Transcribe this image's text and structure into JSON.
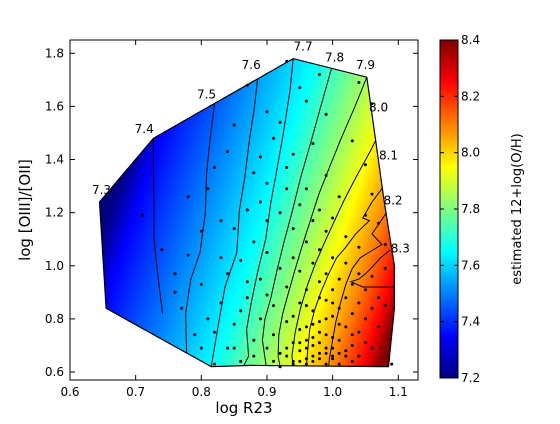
{
  "chart_data": {
    "type": "contour",
    "title": "",
    "xlabel": "log R23",
    "ylabel": "log [OIII]/[OII]",
    "xlim": [
      0.6,
      1.13
    ],
    "ylim": [
      0.57,
      1.85
    ],
    "xticks": [
      "0.6",
      "0.7",
      "0.8",
      "0.9",
      "1.0",
      "1.1"
    ],
    "yticks": [
      "0.6",
      "0.8",
      "1.0",
      "1.2",
      "1.4",
      "1.6",
      "1.8"
    ],
    "hull": [
      [
        0.645,
        1.24
      ],
      [
        0.727,
        1.48
      ],
      [
        0.94,
        1.78
      ],
      [
        1.052,
        1.71
      ],
      [
        1.078,
        1.25
      ],
      [
        1.094,
        1.0
      ],
      [
        1.094,
        0.84
      ],
      [
        1.085,
        0.62
      ],
      [
        0.876,
        0.625
      ],
      [
        0.815,
        0.62
      ],
      [
        0.655,
        0.84
      ]
    ],
    "contours": [
      {
        "level": "7.3",
        "points": [
          [
            0.645,
            1.24
          ],
          [
            0.655,
            0.84
          ]
        ]
      },
      {
        "level": "7.4",
        "points": [
          [
            0.727,
            1.48
          ],
          [
            0.727,
            1.35
          ],
          [
            0.728,
            1.25
          ],
          [
            0.728,
            1.1
          ],
          [
            0.733,
            0.98
          ],
          [
            0.741,
            0.82
          ]
        ]
      },
      {
        "level": "7.5",
        "points": [
          [
            0.82,
            1.61
          ],
          [
            0.813,
            1.47
          ],
          [
            0.808,
            1.35
          ],
          [
            0.806,
            1.2
          ],
          [
            0.798,
            1.05
          ],
          [
            0.784,
            0.95
          ],
          [
            0.776,
            0.82
          ],
          [
            0.778,
            0.63
          ]
        ]
      },
      {
        "level": "7.6",
        "points": [
          [
            0.886,
            1.71
          ],
          [
            0.881,
            1.6
          ],
          [
            0.873,
            1.47
          ],
          [
            0.866,
            1.33
          ],
          [
            0.858,
            1.21
          ],
          [
            0.854,
            1.05
          ],
          [
            0.836,
            0.92
          ],
          [
            0.826,
            0.78
          ],
          [
            0.815,
            0.62
          ]
        ]
      },
      {
        "level": "7.7",
        "points": [
          [
            0.94,
            1.78
          ],
          [
            0.935,
            1.66
          ],
          [
            0.925,
            1.5
          ],
          [
            0.915,
            1.36
          ],
          [
            0.906,
            1.24
          ],
          [
            0.898,
            1.1
          ],
          [
            0.886,
            0.98
          ],
          [
            0.876,
            0.86
          ],
          [
            0.869,
            0.76
          ],
          [
            0.872,
            0.66
          ],
          [
            0.864,
            0.62
          ]
        ]
      },
      {
        "level": "7.8",
        "points": [
          [
            0.999,
            1.75
          ],
          [
            0.982,
            1.6
          ],
          [
            0.965,
            1.45
          ],
          [
            0.951,
            1.33
          ],
          [
            0.938,
            1.2
          ],
          [
            0.927,
            1.1
          ],
          [
            0.915,
            0.98
          ],
          [
            0.906,
            0.88
          ],
          [
            0.897,
            0.8
          ],
          [
            0.893,
            0.72
          ],
          [
            0.899,
            0.62
          ]
        ]
      },
      {
        "level": "7.9",
        "points": [
          [
            1.052,
            1.71
          ],
          [
            1.034,
            1.6
          ],
          [
            1.013,
            1.48
          ],
          [
            0.995,
            1.37
          ],
          [
            0.979,
            1.27
          ],
          [
            0.966,
            1.17
          ],
          [
            0.953,
            1.07
          ],
          [
            0.942,
            0.98
          ],
          [
            0.933,
            0.9
          ],
          [
            0.924,
            0.82
          ],
          [
            0.918,
            0.74
          ],
          [
            0.917,
            0.66
          ],
          [
            0.92,
            0.62
          ]
        ]
      },
      {
        "level": "8.0",
        "points": [
          [
            1.075,
            1.52
          ],
          [
            1.057,
            1.43
          ],
          [
            1.037,
            1.34
          ],
          [
            1.018,
            1.25
          ],
          [
            1.003,
            1.17
          ],
          [
            0.988,
            1.09
          ],
          [
            0.974,
            1.01
          ],
          [
            0.962,
            0.93
          ],
          [
            0.951,
            0.84
          ],
          [
            0.943,
            0.75
          ],
          [
            0.938,
            0.66
          ],
          [
            0.94,
            0.62
          ]
        ]
      },
      {
        "level": "8.1",
        "points": [
          [
            1.078,
            1.3
          ],
          [
            1.06,
            1.24
          ],
          [
            1.046,
            1.18
          ],
          [
            1.056,
            1.17
          ],
          [
            1.035,
            1.12
          ],
          [
            1.02,
            1.07
          ],
          [
            1.006,
            1.03
          ],
          [
            0.994,
            0.97
          ],
          [
            0.982,
            0.9
          ],
          [
            0.972,
            0.83
          ],
          [
            0.965,
            0.76
          ],
          [
            0.962,
            0.68
          ],
          [
            0.96,
            0.62
          ]
        ]
      },
      {
        "level": "8.2",
        "points": [
          [
            1.082,
            1.2
          ],
          [
            1.06,
            1.12
          ],
          [
            1.075,
            1.08
          ],
          [
            1.055,
            1.05
          ],
          [
            1.042,
            1.03
          ],
          [
            1.03,
            0.99
          ],
          [
            1.02,
            0.93
          ],
          [
            1.012,
            0.86
          ],
          [
            1.005,
            0.79
          ],
          [
            1.0,
            0.72
          ],
          [
            0.995,
            0.65
          ],
          [
            0.994,
            0.62
          ]
        ]
      },
      {
        "level": "8.3",
        "points": [
          [
            1.088,
            1.06
          ],
          [
            1.073,
            1.03
          ],
          [
            1.062,
            1.0
          ],
          [
            1.05,
            0.97
          ],
          [
            1.04,
            0.95
          ],
          [
            1.028,
            0.94
          ],
          [
            1.046,
            0.92
          ],
          [
            1.06,
            0.92
          ],
          [
            1.094,
            0.92
          ]
        ]
      }
    ],
    "contour_labels": [
      {
        "text": "7.3",
        "x": 0.648,
        "y": 1.27
      },
      {
        "text": "7.4",
        "x": 0.713,
        "y": 1.5
      },
      {
        "text": "7.5",
        "x": 0.808,
        "y": 1.63
      },
      {
        "text": "7.6",
        "x": 0.876,
        "y": 1.74
      },
      {
        "text": "7.7",
        "x": 0.955,
        "y": 1.81
      },
      {
        "text": "7.8",
        "x": 1.003,
        "y": 1.77
      },
      {
        "text": "7.9",
        "x": 1.05,
        "y": 1.74
      },
      {
        "text": "8.0",
        "x": 1.07,
        "y": 1.58
      },
      {
        "text": "8.1",
        "x": 1.085,
        "y": 1.4
      },
      {
        "text": "8.2",
        "x": 1.092,
        "y": 1.23
      },
      {
        "text": "8.3",
        "x": 1.103,
        "y": 1.05
      }
    ],
    "colorbar": {
      "label": "estimated 12+log(O/H)",
      "min": 7.2,
      "max": 8.4,
      "ticks": [
        "7.2",
        "7.4",
        "7.6",
        "7.8",
        "8.0",
        "8.2",
        "8.4"
      ],
      "colors": [
        "#000080",
        "#0000ff",
        "#0080ff",
        "#00ffff",
        "#80ff80",
        "#ffff00",
        "#ff8000",
        "#ff0000",
        "#800000"
      ]
    },
    "scatter_points": [
      [
        0.78,
        1.26
      ],
      [
        0.8,
        1.13
      ],
      [
        0.81,
        1.29
      ],
      [
        0.8,
        0.93
      ],
      [
        0.78,
        1.04
      ],
      [
        0.77,
        0.84
      ],
      [
        0.79,
        0.74
      ],
      [
        0.8,
        0.69
      ],
      [
        0.82,
        1.37
      ],
      [
        0.83,
        1.17
      ],
      [
        0.84,
        0.97
      ],
      [
        0.83,
        0.86
      ],
      [
        0.85,
        0.78
      ],
      [
        0.84,
        0.69
      ],
      [
        0.86,
        0.64
      ],
      [
        0.88,
        0.72
      ],
      [
        0.87,
        1.21
      ],
      [
        0.87,
        0.88
      ],
      [
        0.86,
        1.02
      ],
      [
        0.88,
        1.09
      ],
      [
        0.89,
        0.95
      ],
      [
        0.89,
        0.8
      ],
      [
        0.9,
        1.31
      ],
      [
        0.9,
        1.17
      ],
      [
        0.91,
        1.48
      ],
      [
        0.9,
        1.05
      ],
      [
        0.91,
        0.85
      ],
      [
        0.91,
        0.74
      ],
      [
        0.92,
        1.2
      ],
      [
        0.92,
        0.99
      ],
      [
        0.92,
        0.67
      ],
      [
        0.93,
        1.29
      ],
      [
        0.93,
        0.92
      ],
      [
        0.93,
        0.79
      ],
      [
        0.94,
        1.14
      ],
      [
        0.94,
        1.03
      ],
      [
        0.94,
        0.71
      ],
      [
        0.94,
        0.63
      ],
      [
        0.95,
        1.23
      ],
      [
        0.95,
        0.98
      ],
      [
        0.95,
        0.86
      ],
      [
        0.95,
        0.68
      ],
      [
        0.96,
        1.09
      ],
      [
        0.96,
        0.91
      ],
      [
        0.96,
        0.77
      ],
      [
        0.96,
        0.65
      ],
      [
        0.97,
        1.17
      ],
      [
        0.97,
        1.01
      ],
      [
        0.97,
        0.83
      ],
      [
        0.97,
        0.7
      ],
      [
        0.97,
        0.64
      ],
      [
        0.98,
        1.06
      ],
      [
        0.98,
        0.94
      ],
      [
        0.98,
        0.79
      ],
      [
        0.98,
        0.67
      ],
      [
        0.99,
        1.13
      ],
      [
        0.99,
        0.97
      ],
      [
        0.99,
        0.87
      ],
      [
        0.99,
        0.74
      ],
      [
        0.99,
        0.63
      ],
      [
        1.0,
        1.03
      ],
      [
        1.0,
        0.91
      ],
      [
        1.0,
        0.81
      ],
      [
        1.0,
        0.69
      ],
      [
        1.0,
        0.65
      ],
      [
        1.01,
        0.95
      ],
      [
        1.01,
        0.84
      ],
      [
        1.01,
        0.72
      ],
      [
        1.01,
        0.63
      ],
      [
        1.02,
        1.01
      ],
      [
        1.02,
        0.88
      ],
      [
        1.02,
        0.77
      ],
      [
        1.02,
        0.68
      ],
      [
        1.03,
        0.93
      ],
      [
        1.03,
        0.82
      ],
      [
        1.03,
        0.7
      ],
      [
        1.03,
        0.64
      ],
      [
        1.04,
        0.97
      ],
      [
        1.04,
        0.86
      ],
      [
        1.04,
        0.75
      ],
      [
        1.04,
        0.66
      ],
      [
        1.05,
        0.91
      ],
      [
        1.05,
        0.8
      ],
      [
        1.05,
        0.71
      ],
      [
        1.06,
        0.96
      ],
      [
        1.06,
        0.84
      ],
      [
        1.06,
        0.69
      ],
      [
        1.07,
        0.88
      ],
      [
        1.07,
        0.77
      ],
      [
        1.08,
        0.99
      ],
      [
        1.08,
        0.85
      ],
      [
        1.09,
        0.63
      ],
      [
        0.93,
        0.66
      ],
      [
        0.94,
        0.64
      ],
      [
        0.95,
        0.64
      ],
      [
        0.96,
        0.63
      ],
      [
        0.97,
        0.66
      ],
      [
        0.98,
        0.65
      ],
      [
        0.99,
        0.67
      ],
      [
        1.0,
        0.66
      ],
      [
        0.95,
        0.71
      ],
      [
        0.96,
        0.69
      ],
      [
        0.98,
        0.71
      ],
      [
        1.01,
        0.67
      ],
      [
        0.93,
        0.69
      ],
      [
        0.97,
        0.73
      ],
      [
        0.99,
        0.69
      ],
      [
        1.02,
        0.66
      ],
      [
        0.96,
        0.72
      ],
      [
        0.98,
        0.75
      ],
      [
        1.0,
        0.73
      ],
      [
        1.03,
        0.74
      ],
      [
        0.95,
        0.76
      ],
      [
        0.97,
        0.78
      ],
      [
        0.99,
        0.8
      ],
      [
        1.01,
        0.78
      ],
      [
        0.94,
        0.81
      ],
      [
        0.96,
        0.85
      ],
      [
        0.98,
        0.88
      ],
      [
        1.0,
        0.86
      ],
      [
        0.93,
        1.37
      ],
      [
        0.96,
        1.29
      ],
      [
        0.98,
        1.21
      ],
      [
        1.0,
        1.18
      ],
      [
        1.02,
        1.11
      ],
      [
        1.04,
        1.07
      ],
      [
        1.01,
        1.26
      ],
      [
        0.99,
        1.34
      ],
      [
        0.94,
        1.42
      ],
      [
        0.97,
        1.46
      ],
      [
        0.9,
        1.58
      ],
      [
        0.95,
        1.67
      ],
      [
        0.98,
        1.72
      ],
      [
        0.93,
        1.77
      ],
      [
        0.96,
        1.62
      ],
      [
        0.87,
        1.68
      ],
      [
        0.85,
        1.53
      ],
      [
        0.84,
        1.43
      ],
      [
        0.89,
        1.41
      ],
      [
        0.92,
        1.54
      ],
      [
        0.99,
        1.57
      ],
      [
        1.03,
        1.47
      ],
      [
        1.05,
        1.38
      ],
      [
        1.06,
        1.27
      ],
      [
        1.07,
        1.16
      ],
      [
        1.05,
        1.19
      ],
      [
        1.06,
        1.61
      ],
      [
        1.04,
        1.69
      ],
      [
        1.08,
        1.08
      ],
      [
        0.71,
        1.19
      ],
      [
        0.74,
        1.06
      ],
      [
        0.76,
        0.9
      ],
      [
        0.76,
        0.97
      ],
      [
        0.82,
        0.63
      ],
      [
        0.85,
        0.69
      ],
      [
        0.88,
        0.66
      ],
      [
        0.9,
        0.69
      ],
      [
        0.91,
        0.64
      ],
      [
        0.92,
        0.62
      ],
      [
        0.9,
        0.89
      ],
      [
        0.89,
        1.24
      ],
      [
        0.88,
        1.35
      ],
      [
        0.85,
        1.14
      ],
      [
        0.83,
        1.03
      ],
      [
        0.87,
        0.94
      ],
      [
        0.86,
        0.83
      ],
      [
        0.81,
        0.8
      ],
      [
        0.82,
        0.75
      ]
    ]
  }
}
